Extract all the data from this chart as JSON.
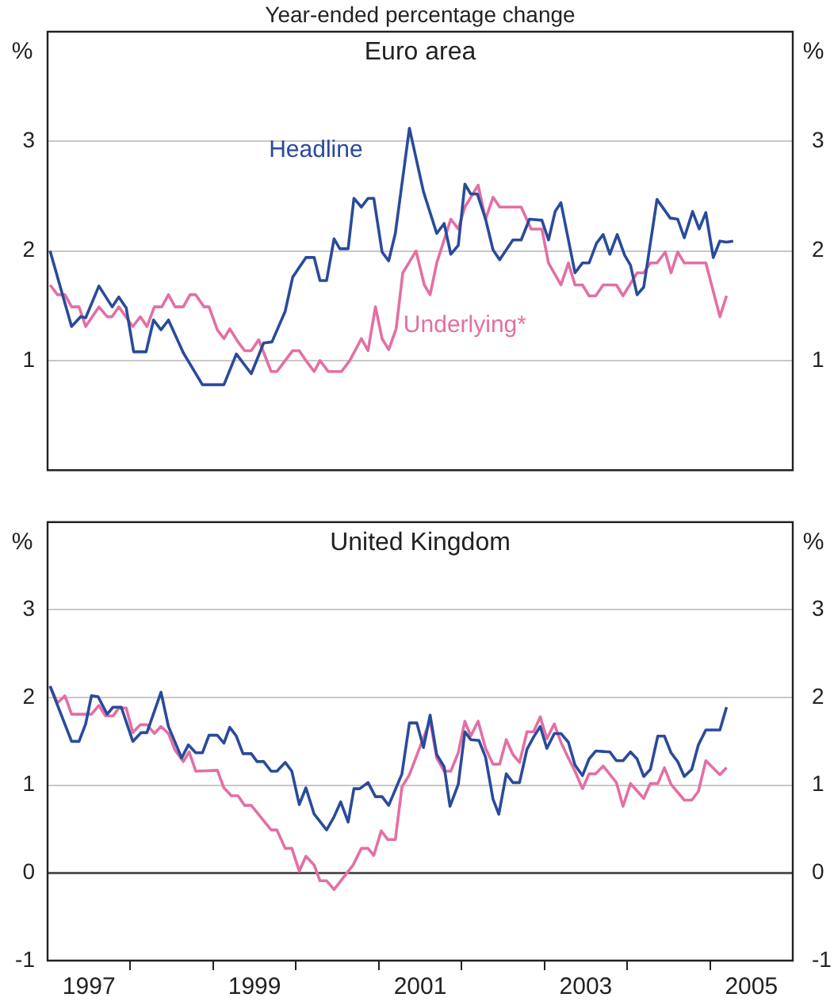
{
  "chart_data": [
    {
      "type": "line",
      "subtitle": "Year-ended percentage change",
      "title": "Euro area",
      "ylabel": "%",
      "y2label": "%",
      "xlim": [
        1997,
        2006
      ],
      "ylim": [
        0,
        4
      ],
      "yticks": [
        1,
        2,
        3
      ],
      "y2lim": [
        0,
        4
      ],
      "y2ticks": [
        1,
        2,
        3
      ],
      "grid": "y",
      "tick_labels": "y",
      "marker": "none",
      "line_style": "solid",
      "series": [
        {
          "name": "Headline",
          "color": "#2a4b9b",
          "x": [
            1997.03,
            1997.29,
            1997.4,
            1997.46,
            1997.62,
            1997.78,
            1997.86,
            1997.95,
            1998.04,
            1998.19,
            1998.28,
            1998.37,
            1998.46,
            1998.64,
            1998.87,
            1999.13,
            1999.28,
            1999.46,
            1999.61,
            1999.71,
            1999.87,
            1999.96,
            2000.12,
            2000.22,
            2000.29,
            2000.37,
            2000.46,
            2000.53,
            2000.63,
            2000.7,
            2000.79,
            2000.87,
            2000.94,
            2001.04,
            2001.12,
            2001.2,
            2001.37,
            2001.54,
            2001.7,
            2001.79,
            2001.87,
            2001.96,
            2002.04,
            2002.11,
            2002.19,
            2002.29,
            2002.38,
            2002.46,
            2002.62,
            2002.72,
            2002.82,
            2002.97,
            2003.05,
            2003.13,
            2003.2,
            2003.37,
            2003.46,
            2003.54,
            2003.63,
            2003.71,
            2003.79,
            2003.88,
            2003.97,
            2004.04,
            2004.12,
            2004.2,
            2004.36,
            2004.52,
            2004.61,
            2004.69,
            2004.79,
            2004.87,
            2004.95,
            2005.04,
            2005.12,
            2005.2,
            2005.28
          ],
          "values": [
            2.0,
            1.31,
            1.4,
            1.39,
            1.68,
            1.49,
            1.58,
            1.48,
            1.08,
            1.08,
            1.37,
            1.28,
            1.37,
            1.07,
            0.78,
            0.78,
            1.06,
            0.88,
            1.16,
            1.17,
            1.45,
            1.76,
            1.94,
            1.94,
            1.73,
            1.73,
            2.11,
            2.02,
            2.02,
            2.48,
            2.4,
            2.48,
            2.48,
            1.99,
            1.91,
            2.16,
            3.12,
            2.54,
            2.16,
            2.25,
            1.97,
            2.05,
            2.61,
            2.52,
            2.52,
            2.29,
            2.01,
            1.92,
            2.1,
            2.1,
            2.29,
            2.28,
            2.1,
            2.36,
            2.44,
            1.8,
            1.89,
            1.89,
            2.07,
            2.15,
            1.97,
            2.15,
            1.96,
            1.87,
            1.6,
            1.67,
            2.47,
            2.3,
            2.29,
            2.12,
            2.36,
            2.2,
            2.35,
            1.94,
            2.09,
            2.08,
            2.09
          ]
        },
        {
          "name": "Underlying*",
          "color": "#e36fa5",
          "x": [
            1997.03,
            1997.12,
            1997.21,
            1997.29,
            1997.38,
            1997.46,
            1997.62,
            1997.72,
            1997.78,
            1997.86,
            1998.03,
            1998.12,
            1998.2,
            1998.29,
            1998.38,
            1998.46,
            1998.54,
            1998.64,
            1998.72,
            1998.79,
            1998.89,
            1998.95,
            1999.05,
            1999.13,
            1999.2,
            1999.3,
            1999.38,
            1999.46,
            1999.55,
            1999.7,
            1999.77,
            1999.87,
            1999.96,
            2000.04,
            2000.12,
            2000.22,
            2000.29,
            2000.39,
            2000.55,
            2000.65,
            2000.79,
            2000.87,
            2000.96,
            2001.04,
            2001.12,
            2001.21,
            2001.29,
            2001.45,
            2001.55,
            2001.62,
            2001.7,
            2001.87,
            2001.96,
            2002.04,
            2002.2,
            2002.29,
            2002.38,
            2002.46,
            2002.72,
            2002.84,
            2002.97,
            2003.05,
            2003.2,
            2003.29,
            2003.37,
            2003.46,
            2003.54,
            2003.62,
            2003.71,
            2003.87,
            2003.95,
            2004.12,
            2004.2,
            2004.28,
            2004.36,
            2004.46,
            2004.53,
            2004.61,
            2004.69,
            2004.95,
            2005.12,
            2005.2
          ],
          "values": [
            1.69,
            1.6,
            1.6,
            1.49,
            1.49,
            1.31,
            1.49,
            1.4,
            1.4,
            1.49,
            1.31,
            1.4,
            1.31,
            1.49,
            1.49,
            1.6,
            1.49,
            1.49,
            1.6,
            1.6,
            1.49,
            1.49,
            1.28,
            1.2,
            1.29,
            1.17,
            1.09,
            1.09,
            1.19,
            0.9,
            0.9,
            1.0,
            1.09,
            1.09,
            1.0,
            0.9,
            1.0,
            0.9,
            0.9,
            1.0,
            1.2,
            1.09,
            1.49,
            1.2,
            1.1,
            1.29,
            1.8,
            2.0,
            1.69,
            1.6,
            1.89,
            2.29,
            2.2,
            2.4,
            2.6,
            2.29,
            2.49,
            2.4,
            2.4,
            2.2,
            2.2,
            1.89,
            1.69,
            1.89,
            1.69,
            1.69,
            1.59,
            1.59,
            1.69,
            1.69,
            1.59,
            1.8,
            1.8,
            1.89,
            1.89,
            1.99,
            1.8,
            1.99,
            1.89,
            1.89,
            1.4,
            1.59
          ]
        }
      ]
    },
    {
      "type": "line",
      "title": "United Kingdom",
      "ylabel": "%",
      "y2label": "%",
      "xlim": [
        1997,
        2006
      ],
      "xticks": [
        {
          "value": 1997.5,
          "label": "1997"
        },
        {
          "value": 1998,
          "label": null
        },
        {
          "value": 1999,
          "label": null
        },
        {
          "value": 1999.5,
          "label": "1999"
        },
        {
          "value": 2000,
          "label": null
        },
        {
          "value": 2001,
          "label": null
        },
        {
          "value": 2001.5,
          "label": "2001"
        },
        {
          "value": 2002,
          "label": null
        },
        {
          "value": 2003,
          "label": null
        },
        {
          "value": 2003.5,
          "label": "2003"
        },
        {
          "value": 2004,
          "label": null
        },
        {
          "value": 2005,
          "label": null
        },
        {
          "value": 2005.5,
          "label": "2005"
        }
      ],
      "ylim": [
        -1,
        4
      ],
      "yticks": [
        -1,
        0,
        1,
        2,
        3
      ],
      "y2lim": [
        -1,
        4
      ],
      "y2ticks": [
        -1,
        0,
        1,
        2,
        3
      ],
      "grid": "y",
      "marker": "none",
      "line_style": "solid",
      "series": [
        {
          "color": "#2a4b9b",
          "x": [
            1997.03,
            1997.29,
            1997.38,
            1997.46,
            1997.53,
            1997.61,
            1997.72,
            1997.79,
            1997.89,
            1998.03,
            1998.13,
            1998.2,
            1998.37,
            1998.46,
            1998.62,
            1998.7,
            1998.79,
            1998.87,
            1998.95,
            1999.05,
            1999.13,
            1999.2,
            1999.28,
            1999.36,
            1999.46,
            1999.53,
            1999.61,
            1999.7,
            1999.77,
            1999.87,
            1999.95,
            2000.04,
            2000.12,
            2000.22,
            2000.37,
            2000.46,
            2000.54,
            2000.63,
            2000.7,
            2000.77,
            2000.87,
            2000.96,
            2001.04,
            2001.12,
            2001.28,
            2001.37,
            2001.46,
            2001.54,
            2001.62,
            2001.7,
            2001.79,
            2001.86,
            2001.96,
            2002.04,
            2002.11,
            2002.21,
            2002.29,
            2002.38,
            2002.45,
            2002.54,
            2002.62,
            2002.7,
            2002.79,
            2002.87,
            2002.95,
            2003.03,
            2003.12,
            2003.2,
            2003.29,
            2003.37,
            2003.46,
            2003.54,
            2003.62,
            2003.79,
            2003.87,
            2003.95,
            2004.04,
            2004.12,
            2004.2,
            2004.28,
            2004.37,
            2004.45,
            2004.53,
            2004.61,
            2004.69,
            2004.78,
            2004.86,
            2004.95,
            2005.12,
            2005.2
          ],
          "values": [
            2.13,
            1.5,
            1.5,
            1.7,
            2.02,
            2.01,
            1.81,
            1.89,
            1.89,
            1.5,
            1.6,
            1.6,
            2.06,
            1.67,
            1.31,
            1.46,
            1.37,
            1.37,
            1.57,
            1.57,
            1.48,
            1.66,
            1.56,
            1.36,
            1.36,
            1.27,
            1.27,
            1.16,
            1.16,
            1.26,
            1.16,
            0.78,
            0.97,
            0.67,
            0.49,
            0.64,
            0.81,
            0.58,
            0.96,
            0.96,
            1.03,
            0.87,
            0.87,
            0.77,
            1.13,
            1.71,
            1.71,
            1.43,
            1.8,
            1.35,
            1.21,
            0.76,
            1.01,
            1.61,
            1.52,
            1.51,
            1.32,
            0.84,
            0.67,
            1.13,
            1.03,
            1.03,
            1.41,
            1.55,
            1.67,
            1.42,
            1.59,
            1.59,
            1.49,
            1.23,
            1.11,
            1.3,
            1.39,
            1.38,
            1.28,
            1.28,
            1.38,
            1.3,
            1.1,
            1.18,
            1.56,
            1.56,
            1.37,
            1.27,
            1.1,
            1.18,
            1.46,
            1.63,
            1.63,
            1.89
          ]
        },
        {
          "color": "#e36fa5",
          "x": [
            1997.03,
            1997.12,
            1997.21,
            1997.29,
            1997.53,
            1997.62,
            1997.7,
            1997.79,
            1997.86,
            1997.95,
            1998.03,
            1998.12,
            1998.2,
            1998.29,
            1998.37,
            1998.46,
            1998.54,
            1998.64,
            1998.71,
            1998.79,
            1999.05,
            1999.13,
            1999.22,
            1999.3,
            1999.38,
            1999.46,
            1999.7,
            1999.77,
            1999.87,
            1999.95,
            2000.04,
            2000.12,
            2000.22,
            2000.29,
            2000.37,
            2000.46,
            2000.69,
            2000.79,
            2000.87,
            2000.94,
            2001.03,
            2001.11,
            2001.2,
            2001.28,
            2001.37,
            2001.62,
            2001.7,
            2001.79,
            2001.87,
            2001.96,
            2002.04,
            2002.11,
            2002.2,
            2002.29,
            2002.38,
            2002.46,
            2002.54,
            2002.62,
            2002.7,
            2002.79,
            2002.87,
            2002.95,
            2003.03,
            2003.12,
            2003.2,
            2003.29,
            2003.37,
            2003.46,
            2003.54,
            2003.62,
            2003.71,
            2003.87,
            2003.95,
            2004.04,
            2004.2,
            2004.28,
            2004.37,
            2004.45,
            2004.53,
            2004.69,
            2004.78,
            2004.86,
            2004.95,
            2005.12,
            2005.2
          ],
          "values": [
            2.13,
            1.94,
            2.02,
            1.81,
            1.81,
            1.91,
            1.79,
            1.79,
            1.88,
            1.88,
            1.6,
            1.69,
            1.69,
            1.59,
            1.67,
            1.59,
            1.4,
            1.27,
            1.38,
            1.16,
            1.17,
            0.97,
            0.88,
            0.88,
            0.77,
            0.77,
            0.49,
            0.49,
            0.28,
            0.28,
            0.02,
            0.19,
            0.09,
            -0.09,
            -0.09,
            -0.19,
            0.09,
            0.28,
            0.28,
            0.2,
            0.48,
            0.38,
            0.38,
            0.98,
            1.12,
            1.74,
            1.31,
            1.16,
            1.16,
            1.37,
            1.73,
            1.56,
            1.73,
            1.42,
            1.24,
            1.24,
            1.52,
            1.35,
            1.26,
            1.61,
            1.61,
            1.78,
            1.53,
            1.7,
            1.49,
            1.31,
            1.16,
            0.96,
            1.13,
            1.13,
            1.22,
            1.03,
            0.76,
            1.02,
            0.85,
            1.02,
            1.02,
            1.2,
            1.01,
            0.83,
            0.83,
            0.93,
            1.28,
            1.12,
            1.2
          ]
        }
      ]
    }
  ]
}
